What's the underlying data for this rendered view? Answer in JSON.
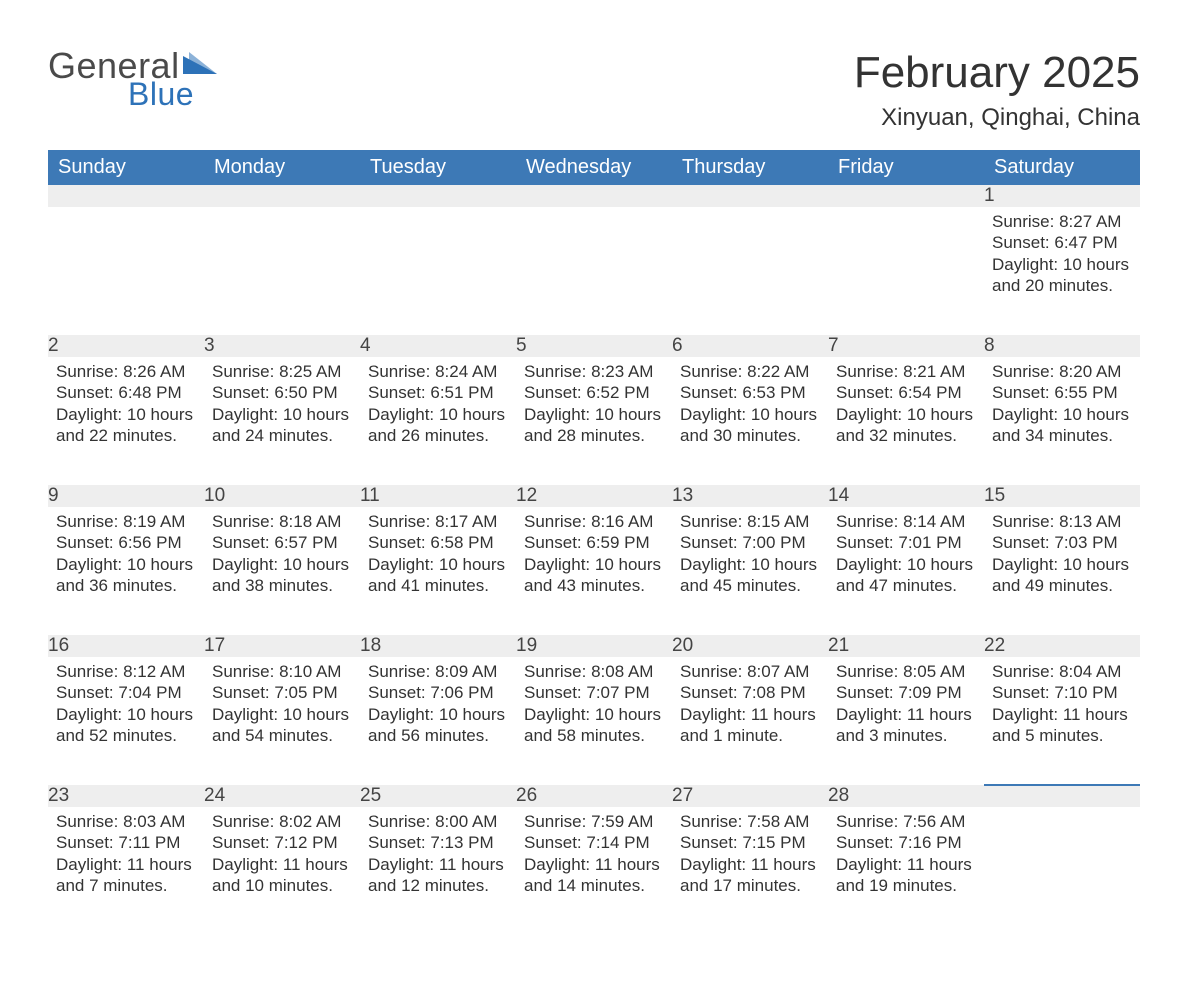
{
  "logo": {
    "word1": "General",
    "word2": "Blue",
    "word1_color": "#4a4a4a",
    "word2_color": "#2d72b8",
    "triangle_color": "#2d72b8"
  },
  "header": {
    "month_title": "February 2025",
    "location": "Xinyuan, Qinghai, China",
    "title_color": "#333333"
  },
  "calendar": {
    "header_bg": "#3d79b6",
    "header_text_color": "#ffffff",
    "daynum_bg": "#eeeeee",
    "row_border_color": "#3d79b6",
    "text_color": "#333333",
    "background_color": "#ffffff",
    "day_headers": [
      "Sunday",
      "Monday",
      "Tuesday",
      "Wednesday",
      "Thursday",
      "Friday",
      "Saturday"
    ],
    "weeks": [
      [
        null,
        null,
        null,
        null,
        null,
        null,
        {
          "n": "1",
          "sunrise": "Sunrise: 8:27 AM",
          "sunset": "Sunset: 6:47 PM",
          "daylight": "Daylight: 10 hours and 20 minutes."
        }
      ],
      [
        {
          "n": "2",
          "sunrise": "Sunrise: 8:26 AM",
          "sunset": "Sunset: 6:48 PM",
          "daylight": "Daylight: 10 hours and 22 minutes."
        },
        {
          "n": "3",
          "sunrise": "Sunrise: 8:25 AM",
          "sunset": "Sunset: 6:50 PM",
          "daylight": "Daylight: 10 hours and 24 minutes."
        },
        {
          "n": "4",
          "sunrise": "Sunrise: 8:24 AM",
          "sunset": "Sunset: 6:51 PM",
          "daylight": "Daylight: 10 hours and 26 minutes."
        },
        {
          "n": "5",
          "sunrise": "Sunrise: 8:23 AM",
          "sunset": "Sunset: 6:52 PM",
          "daylight": "Daylight: 10 hours and 28 minutes."
        },
        {
          "n": "6",
          "sunrise": "Sunrise: 8:22 AM",
          "sunset": "Sunset: 6:53 PM",
          "daylight": "Daylight: 10 hours and 30 minutes."
        },
        {
          "n": "7",
          "sunrise": "Sunrise: 8:21 AM",
          "sunset": "Sunset: 6:54 PM",
          "daylight": "Daylight: 10 hours and 32 minutes."
        },
        {
          "n": "8",
          "sunrise": "Sunrise: 8:20 AM",
          "sunset": "Sunset: 6:55 PM",
          "daylight": "Daylight: 10 hours and 34 minutes."
        }
      ],
      [
        {
          "n": "9",
          "sunrise": "Sunrise: 8:19 AM",
          "sunset": "Sunset: 6:56 PM",
          "daylight": "Daylight: 10 hours and 36 minutes."
        },
        {
          "n": "10",
          "sunrise": "Sunrise: 8:18 AM",
          "sunset": "Sunset: 6:57 PM",
          "daylight": "Daylight: 10 hours and 38 minutes."
        },
        {
          "n": "11",
          "sunrise": "Sunrise: 8:17 AM",
          "sunset": "Sunset: 6:58 PM",
          "daylight": "Daylight: 10 hours and 41 minutes."
        },
        {
          "n": "12",
          "sunrise": "Sunrise: 8:16 AM",
          "sunset": "Sunset: 6:59 PM",
          "daylight": "Daylight: 10 hours and 43 minutes."
        },
        {
          "n": "13",
          "sunrise": "Sunrise: 8:15 AM",
          "sunset": "Sunset: 7:00 PM",
          "daylight": "Daylight: 10 hours and 45 minutes."
        },
        {
          "n": "14",
          "sunrise": "Sunrise: 8:14 AM",
          "sunset": "Sunset: 7:01 PM",
          "daylight": "Daylight: 10 hours and 47 minutes."
        },
        {
          "n": "15",
          "sunrise": "Sunrise: 8:13 AM",
          "sunset": "Sunset: 7:03 PM",
          "daylight": "Daylight: 10 hours and 49 minutes."
        }
      ],
      [
        {
          "n": "16",
          "sunrise": "Sunrise: 8:12 AM",
          "sunset": "Sunset: 7:04 PM",
          "daylight": "Daylight: 10 hours and 52 minutes."
        },
        {
          "n": "17",
          "sunrise": "Sunrise: 8:10 AM",
          "sunset": "Sunset: 7:05 PM",
          "daylight": "Daylight: 10 hours and 54 minutes."
        },
        {
          "n": "18",
          "sunrise": "Sunrise: 8:09 AM",
          "sunset": "Sunset: 7:06 PM",
          "daylight": "Daylight: 10 hours and 56 minutes."
        },
        {
          "n": "19",
          "sunrise": "Sunrise: 8:08 AM",
          "sunset": "Sunset: 7:07 PM",
          "daylight": "Daylight: 10 hours and 58 minutes."
        },
        {
          "n": "20",
          "sunrise": "Sunrise: 8:07 AM",
          "sunset": "Sunset: 7:08 PM",
          "daylight": "Daylight: 11 hours and 1 minute."
        },
        {
          "n": "21",
          "sunrise": "Sunrise: 8:05 AM",
          "sunset": "Sunset: 7:09 PM",
          "daylight": "Daylight: 11 hours and 3 minutes."
        },
        {
          "n": "22",
          "sunrise": "Sunrise: 8:04 AM",
          "sunset": "Sunset: 7:10 PM",
          "daylight": "Daylight: 11 hours and 5 minutes."
        }
      ],
      [
        {
          "n": "23",
          "sunrise": "Sunrise: 8:03 AM",
          "sunset": "Sunset: 7:11 PM",
          "daylight": "Daylight: 11 hours and 7 minutes."
        },
        {
          "n": "24",
          "sunrise": "Sunrise: 8:02 AM",
          "sunset": "Sunset: 7:12 PM",
          "daylight": "Daylight: 11 hours and 10 minutes."
        },
        {
          "n": "25",
          "sunrise": "Sunrise: 8:00 AM",
          "sunset": "Sunset: 7:13 PM",
          "daylight": "Daylight: 11 hours and 12 minutes."
        },
        {
          "n": "26",
          "sunrise": "Sunrise: 7:59 AM",
          "sunset": "Sunset: 7:14 PM",
          "daylight": "Daylight: 11 hours and 14 minutes."
        },
        {
          "n": "27",
          "sunrise": "Sunrise: 7:58 AM",
          "sunset": "Sunset: 7:15 PM",
          "daylight": "Daylight: 11 hours and 17 minutes."
        },
        {
          "n": "28",
          "sunrise": "Sunrise: 7:56 AM",
          "sunset": "Sunset: 7:16 PM",
          "daylight": "Daylight: 11 hours and 19 minutes."
        },
        null
      ]
    ]
  }
}
